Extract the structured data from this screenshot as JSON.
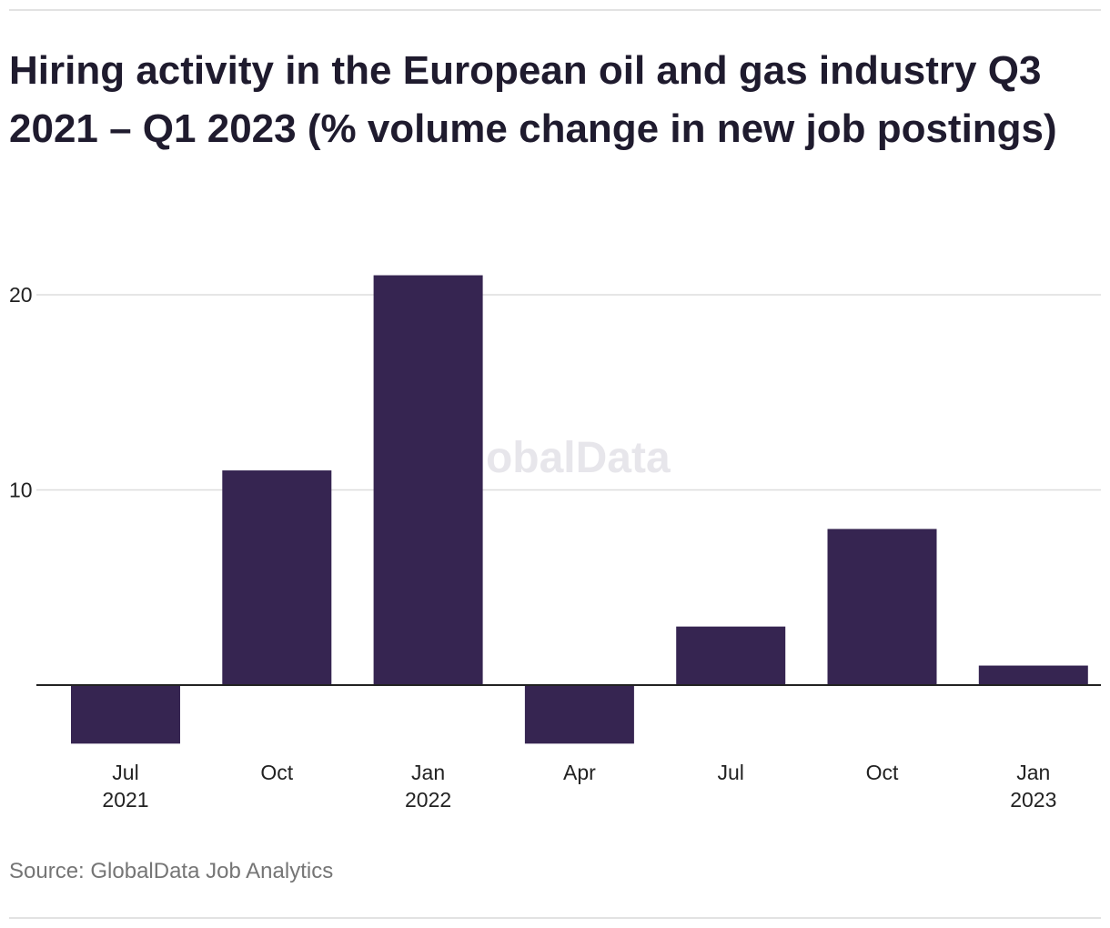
{
  "title": "Hiring activity in the European oil and gas industry Q3 2021 – Q1 2023 (% volume change in new job postings)",
  "source": "Source: GlobalData Job Analytics",
  "watermark": "GlobalData",
  "colors": {
    "bar": "#362551",
    "grid": "#dddddd",
    "axis": "#222222"
  },
  "chart_data": {
    "type": "bar",
    "title": "Hiring activity in the European oil and gas industry Q3 2021 – Q1 2023 (% volume change in new job postings)",
    "categories": [
      {
        "label": "Jul",
        "year": "2021"
      },
      {
        "label": "Oct",
        "year": ""
      },
      {
        "label": "Jan",
        "year": "2022"
      },
      {
        "label": "Apr",
        "year": ""
      },
      {
        "label": "Jul",
        "year": ""
      },
      {
        "label": "Oct",
        "year": ""
      },
      {
        "label": "Jan",
        "year": "2023"
      }
    ],
    "values": [
      -3,
      11,
      21,
      -3,
      3,
      8,
      1
    ],
    "yticks": [
      10,
      20
    ],
    "ylim": [
      -4,
      22
    ],
    "grid": true,
    "legend": "none",
    "xlabel": "",
    "ylabel": ""
  }
}
